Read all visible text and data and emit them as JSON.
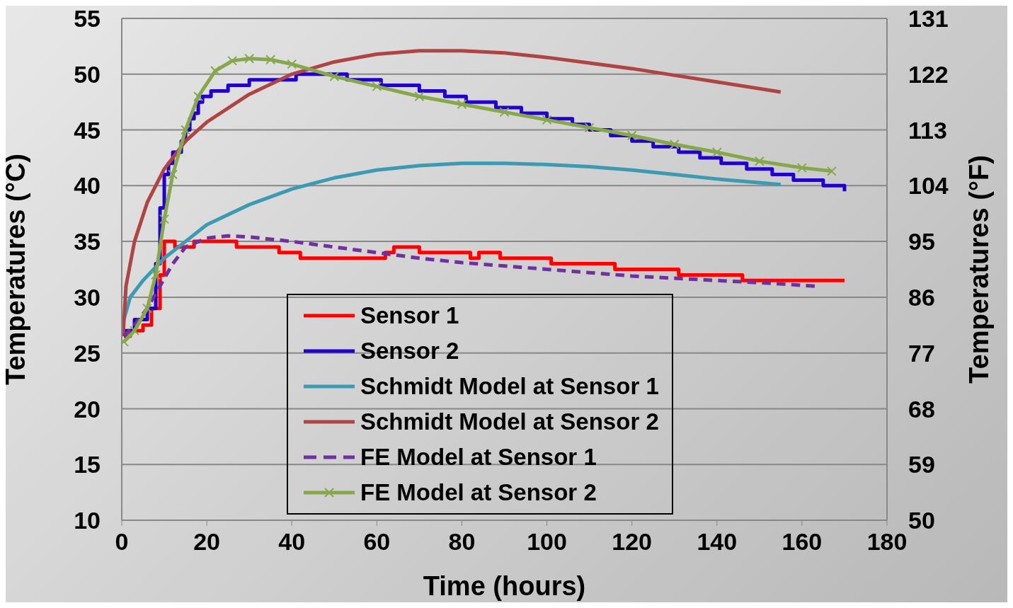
{
  "chart_data": {
    "type": "line",
    "xlabel": "Time (hours)",
    "ylabel": "Temperatures (°C)",
    "y2label": "Temperatures (°F)",
    "xlim": [
      0,
      180
    ],
    "xticks": [
      0,
      20,
      40,
      60,
      80,
      100,
      120,
      140,
      160,
      180
    ],
    "ylim": [
      10,
      55
    ],
    "yticks": [
      10,
      15,
      20,
      25,
      30,
      35,
      40,
      45,
      50,
      55
    ],
    "y2lim": [
      50,
      131
    ],
    "y2ticks": [
      50,
      59,
      68,
      77,
      86,
      95,
      104,
      113,
      122,
      131
    ],
    "grid": "y",
    "legend": "bottom",
    "marker": "none",
    "line_style": "solid",
    "series": [
      {
        "name": "Sensor 1",
        "type": "step",
        "color": "#ff0000",
        "x": [
          0.5,
          2,
          5,
          7,
          9,
          10,
          12.5,
          17,
          27,
          37,
          42,
          62,
          64,
          70,
          82,
          84,
          89,
          101,
          116,
          131,
          146,
          170
        ],
        "values": [
          26.5,
          27,
          27.5,
          29,
          32,
          35,
          34.5,
          35,
          34.5,
          34,
          33.5,
          34,
          34.5,
          34,
          33.5,
          34,
          33.5,
          33,
          32.5,
          32,
          31.5,
          31.5
        ]
      },
      {
        "name": "Sensor 2",
        "type": "step",
        "color": "#2200cc",
        "x": [
          0.5,
          3,
          6,
          8,
          9,
          10,
          11,
          12,
          14,
          15,
          16,
          17,
          18,
          19,
          21,
          25,
          30,
          41,
          53,
          61,
          70,
          76,
          81,
          88,
          94,
          100,
          106,
          110,
          115,
          120,
          125,
          131,
          136,
          141,
          147,
          153,
          158,
          165,
          170
        ],
        "values": [
          27,
          28,
          29,
          33,
          38,
          41,
          42,
          43,
          44,
          45,
          46,
          46.5,
          47.5,
          48,
          48.5,
          49,
          49.5,
          50,
          49.5,
          49,
          48.5,
          48,
          47.5,
          47,
          46.5,
          46,
          45.5,
          45,
          44.5,
          44,
          43.5,
          43,
          42.5,
          42,
          41.5,
          41,
          40.5,
          40,
          39.5
        ]
      },
      {
        "name": "Schmidt Model at Sensor 1",
        "color": "#3d9ab3",
        "x": [
          0.5,
          2,
          5,
          10,
          15,
          20,
          30,
          40,
          50,
          60,
          70,
          80,
          90,
          100,
          110,
          120,
          130,
          140,
          155
        ],
        "values": [
          28,
          30,
          31.5,
          33.5,
          35,
          36.5,
          38.3,
          39.7,
          40.7,
          41.4,
          41.8,
          42,
          42,
          41.9,
          41.7,
          41.4,
          41,
          40.6,
          40.1
        ]
      },
      {
        "name": "Schmidt Model at Sensor 2",
        "color": "#b04444",
        "x": [
          0.3,
          1,
          3,
          6,
          10,
          15,
          20,
          30,
          40,
          50,
          60,
          70,
          80,
          90,
          100,
          110,
          120,
          130,
          140,
          155
        ],
        "values": [
          26.5,
          31,
          35,
          38.5,
          41.5,
          44,
          45.7,
          48.2,
          50,
          51.1,
          51.8,
          52.1,
          52.1,
          51.9,
          51.5,
          51,
          50.5,
          49.9,
          49.3,
          48.4
        ]
      },
      {
        "name": "FE Model at Sensor 1",
        "color": "#7030a0",
        "line_style": "dashed",
        "x": [
          0.5,
          3,
          6,
          9,
          12,
          15,
          20,
          25,
          30,
          40,
          50,
          60,
          70,
          80,
          90,
          100,
          110,
          120,
          130,
          140,
          150,
          163
        ],
        "values": [
          26.5,
          27.5,
          29,
          31,
          33,
          34.5,
          35.3,
          35.5,
          35.4,
          35,
          34.5,
          34,
          33.5,
          33.1,
          32.8,
          32.5,
          32.2,
          31.9,
          31.7,
          31.5,
          31.3,
          31
        ]
      },
      {
        "name": "FE Model at Sensor 2",
        "color": "#86a84a",
        "marker": "cross",
        "x": [
          0.5,
          3,
          6,
          8,
          10,
          12,
          15,
          18,
          22,
          26,
          30,
          35,
          40,
          50,
          60,
          70,
          80,
          90,
          100,
          110,
          120,
          130,
          140,
          150,
          160,
          167
        ],
        "values": [
          26,
          27,
          29,
          32,
          37,
          41,
          45,
          48,
          50.3,
          51.2,
          51.4,
          51.3,
          50.9,
          49.8,
          48.9,
          48,
          47.3,
          46.6,
          45.9,
          45.2,
          44.5,
          43.7,
          43,
          42.2,
          41.6,
          41.3
        ]
      }
    ]
  }
}
